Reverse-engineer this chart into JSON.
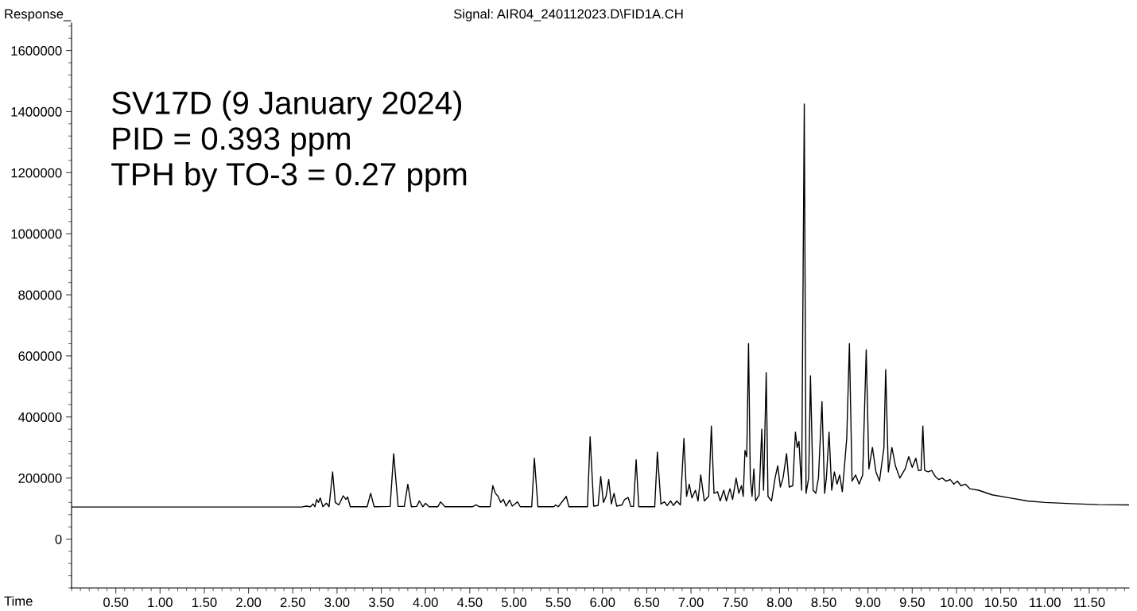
{
  "chart_data": {
    "type": "line",
    "title": "Signal: AIR04_240112023.D\\FID1A.CH",
    "xlabel": "Time",
    "ylabel": "Response_",
    "annotations": [
      "SV17D (9 January 2024)\nPID = 0.393 ppm\nTPH by TO-3 = 0.27 ppm"
    ],
    "x": [
      0,
      2.6,
      2.65,
      2.7,
      2.73,
      2.75,
      2.77,
      2.79,
      2.81,
      2.84,
      2.88,
      2.91,
      2.95,
      2.98,
      3.02,
      3.07,
      3.1,
      3.12,
      3.15,
      3.34,
      3.38,
      3.42,
      3.6,
      3.64,
      3.69,
      3.76,
      3.8,
      3.84,
      3.9,
      3.93,
      3.97,
      4.0,
      4.04,
      4.14,
      4.17,
      4.22,
      4.53,
      4.57,
      4.61,
      4.73,
      4.76,
      4.79,
      4.82,
      4.85,
      4.88,
      4.91,
      4.95,
      4.98,
      5.04,
      5.07,
      5.2,
      5.23,
      5.27,
      5.45,
      5.47,
      5.5,
      5.59,
      5.62,
      5.83,
      5.86,
      5.9,
      5.95,
      5.98,
      6.01,
      6.04,
      6.07,
      6.1,
      6.13,
      6.16,
      6.22,
      6.25,
      6.29,
      6.32,
      6.35,
      6.38,
      6.41,
      6.59,
      6.62,
      6.66,
      6.7,
      6.73,
      6.77,
      6.8,
      6.84,
      6.88,
      6.92,
      6.95,
      6.98,
      7.01,
      7.05,
      7.08,
      7.11,
      7.15,
      7.2,
      7.23,
      7.26,
      7.3,
      7.33,
      7.37,
      7.4,
      7.44,
      7.47,
      7.51,
      7.54,
      7.57,
      7.59,
      7.61,
      7.63,
      7.65,
      7.67,
      7.69,
      7.71,
      7.73,
      7.77,
      7.8,
      7.82,
      7.85,
      7.87,
      7.91,
      7.95,
      7.98,
      8.01,
      8.04,
      8.08,
      8.11,
      8.15,
      8.18,
      8.2,
      8.22,
      8.25,
      8.28,
      8.3,
      8.33,
      8.35,
      8.38,
      8.41,
      8.44,
      8.48,
      8.51,
      8.53,
      8.56,
      8.59,
      8.62,
      8.65,
      8.68,
      8.71,
      8.76,
      8.79,
      8.82,
      8.86,
      8.9,
      8.94,
      8.98,
      9.01,
      9.05,
      9.09,
      9.13,
      9.18,
      9.2,
      9.23,
      9.27,
      9.31,
      9.36,
      9.42,
      9.46,
      9.5,
      9.54,
      9.57,
      9.6,
      9.62,
      9.64,
      9.68,
      9.72,
      9.76,
      9.8,
      9.84,
      9.88,
      9.93,
      9.97,
      10.01,
      10.05,
      10.1,
      10.15,
      10.25,
      10.4,
      10.6,
      10.8,
      11.0,
      11.3,
      11.6,
      11.95
    ],
    "series": [
      {
        "color": "#000000",
        "values": [
          105000,
          105000,
          108000,
          106000,
          115000,
          106000,
          130000,
          120000,
          135000,
          106000,
          118000,
          106000,
          220000,
          120000,
          112000,
          142000,
          130000,
          138000,
          106000,
          106000,
          150000,
          106000,
          107000,
          280000,
          107000,
          107000,
          180000,
          106000,
          107000,
          125000,
          106000,
          117000,
          106000,
          106000,
          122000,
          106000,
          106000,
          112000,
          106000,
          106000,
          175000,
          150000,
          140000,
          120000,
          130000,
          108000,
          128000,
          108000,
          122000,
          106000,
          106000,
          265000,
          106000,
          106000,
          112000,
          106000,
          140000,
          106000,
          106000,
          335000,
          108000,
          110000,
          205000,
          120000,
          140000,
          195000,
          115000,
          150000,
          108000,
          112000,
          130000,
          136000,
          107000,
          107000,
          260000,
          106000,
          106000,
          285000,
          115000,
          122000,
          110000,
          125000,
          110000,
          125000,
          112000,
          330000,
          140000,
          180000,
          135000,
          160000,
          125000,
          210000,
          125000,
          140000,
          370000,
          150000,
          155000,
          125000,
          160000,
          125000,
          165000,
          130000,
          200000,
          150000,
          175000,
          140000,
          290000,
          270000,
          640000,
          200000,
          140000,
          230000,
          125000,
          145000,
          360000,
          160000,
          545000,
          140000,
          125000,
          200000,
          240000,
          170000,
          200000,
          280000,
          170000,
          175000,
          350000,
          300000,
          320000,
          160000,
          1425000,
          150000,
          200000,
          535000,
          160000,
          150000,
          200000,
          450000,
          150000,
          200000,
          350000,
          160000,
          220000,
          180000,
          210000,
          155000,
          330000,
          640000,
          190000,
          210000,
          180000,
          210000,
          620000,
          230000,
          300000,
          220000,
          190000,
          300000,
          555000,
          220000,
          300000,
          240000,
          200000,
          230000,
          270000,
          235000,
          265000,
          225000,
          225000,
          370000,
          225000,
          220000,
          225000,
          205000,
          195000,
          200000,
          190000,
          195000,
          180000,
          190000,
          175000,
          180000,
          165000,
          160000,
          145000,
          135000,
          125000,
          120000,
          116000,
          113000,
          112000
        ]
      }
    ],
    "xlim": [
      0,
      11.95
    ],
    "ylim": [
      -160000,
      1690000
    ],
    "xticks": [
      {
        "value": 0.5,
        "label": "0.50"
      },
      {
        "value": 1,
        "label": "1.00"
      },
      {
        "value": 1.5,
        "label": "1.50"
      },
      {
        "value": 2,
        "label": "2.00"
      },
      {
        "value": 2.5,
        "label": "2.50"
      },
      {
        "value": 3,
        "label": "3.00"
      },
      {
        "value": 3.5,
        "label": "3.50"
      },
      {
        "value": 4,
        "label": "4.00"
      },
      {
        "value": 4.5,
        "label": "4.50"
      },
      {
        "value": 5,
        "label": "5.00"
      },
      {
        "value": 5.5,
        "label": "5.50"
      },
      {
        "value": 6,
        "label": "6.00"
      },
      {
        "value": 6.5,
        "label": "6.50"
      },
      {
        "value": 7,
        "label": "7.00"
      },
      {
        "value": 7.5,
        "label": "7.50"
      },
      {
        "value": 8,
        "label": "8.00"
      },
      {
        "value": 8.5,
        "label": "8.50"
      },
      {
        "value": 9,
        "label": "9.00"
      },
      {
        "value": 9.5,
        "label": "9.50"
      },
      {
        "value": 10,
        "label": "10.00"
      },
      {
        "value": 10.5,
        "label": "10.50"
      },
      {
        "value": 11,
        "label": "11.00"
      },
      {
        "value": 11.5,
        "label": "11.50"
      }
    ],
    "yticks": [
      0,
      200000,
      400000,
      600000,
      800000,
      1000000,
      1200000,
      1400000,
      1600000
    ],
    "grid": false,
    "legend": false,
    "marker": "none",
    "line_style": "solid"
  }
}
